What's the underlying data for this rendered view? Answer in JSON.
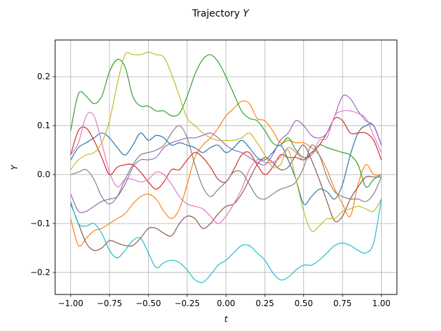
{
  "chart_data": {
    "type": "line",
    "title": "Trajectory ",
    "title_var": "Y",
    "xlabel": "t",
    "ylabel": "Y",
    "xlim": [
      -1.1,
      1.1
    ],
    "ylim": [
      -0.245,
      0.275
    ],
    "xticks": [
      -1.0,
      -0.75,
      -0.5,
      -0.25,
      0.0,
      0.25,
      0.5,
      0.75,
      1.0
    ],
    "xtick_labels": [
      "−1.00",
      "−0.75",
      "−0.50",
      "−0.25",
      "0.00",
      "0.25",
      "0.50",
      "0.75",
      "1.00"
    ],
    "yticks": [
      -0.2,
      -0.1,
      0.0,
      0.1,
      0.2
    ],
    "ytick_labels": [
      "−0.2",
      "−0.1",
      "0.0",
      "0.1",
      "0.2"
    ],
    "grid": true,
    "series": [
      {
        "color": "#1f77b4",
        "x": [
          -1.0,
          -0.95,
          -0.9,
          -0.85,
          -0.8,
          -0.75,
          -0.7,
          -0.65,
          -0.6,
          -0.55,
          -0.5,
          -0.45,
          -0.4,
          -0.35,
          -0.3,
          -0.25,
          -0.2,
          -0.15,
          -0.1,
          -0.05,
          0.0,
          0.05,
          0.1,
          0.15,
          0.2,
          0.25,
          0.3,
          0.35,
          0.4,
          0.45,
          0.5,
          0.55,
          0.6,
          0.65,
          0.7,
          0.75,
          0.8,
          0.85,
          0.9,
          0.95,
          1.0
        ],
        "y": [
          0.03,
          0.055,
          0.065,
          0.075,
          0.085,
          0.075,
          0.055,
          0.04,
          0.06,
          0.085,
          0.07,
          0.08,
          0.075,
          0.06,
          0.065,
          0.06,
          0.055,
          0.045,
          0.055,
          0.06,
          0.045,
          0.055,
          0.07,
          0.055,
          0.035,
          0.03,
          0.045,
          0.06,
          0.03,
          -0.01,
          -0.06,
          -0.045,
          -0.03,
          -0.035,
          -0.05,
          -0.02,
          0.04,
          0.085,
          0.1,
          0.1,
          0.06
        ]
      },
      {
        "color": "#ff7f0e",
        "x": [
          -1.0,
          -0.95,
          -0.9,
          -0.85,
          -0.8,
          -0.75,
          -0.7,
          -0.65,
          -0.6,
          -0.55,
          -0.5,
          -0.45,
          -0.4,
          -0.35,
          -0.3,
          -0.25,
          -0.2,
          -0.15,
          -0.1,
          -0.05,
          0.0,
          0.05,
          0.1,
          0.15,
          0.2,
          0.25,
          0.3,
          0.35,
          0.4,
          0.45,
          0.5,
          0.55,
          0.6,
          0.65,
          0.7,
          0.75,
          0.8,
          0.85,
          0.9,
          0.95,
          1.0
        ],
        "y": [
          -0.09,
          -0.145,
          -0.13,
          -0.115,
          -0.11,
          -0.1,
          -0.09,
          -0.08,
          -0.06,
          -0.045,
          -0.04,
          -0.05,
          -0.075,
          -0.09,
          -0.07,
          -0.02,
          0.035,
          0.06,
          0.075,
          0.095,
          0.12,
          0.135,
          0.15,
          0.145,
          0.115,
          0.11,
          0.09,
          0.065,
          0.07,
          0.065,
          0.065,
          0.055,
          0.04,
          0.01,
          -0.03,
          -0.06,
          -0.085,
          -0.02,
          0.02,
          0.0,
          0.0
        ]
      },
      {
        "color": "#2ca02c",
        "x": [
          -1.0,
          -0.95,
          -0.9,
          -0.85,
          -0.8,
          -0.75,
          -0.7,
          -0.65,
          -0.6,
          -0.55,
          -0.5,
          -0.45,
          -0.4,
          -0.35,
          -0.3,
          -0.25,
          -0.2,
          -0.15,
          -0.1,
          -0.05,
          0.0,
          0.05,
          0.1,
          0.15,
          0.2,
          0.25,
          0.3,
          0.35,
          0.4,
          0.45,
          0.5,
          0.55,
          0.6,
          0.65,
          0.7,
          0.75,
          0.8,
          0.85,
          0.9,
          0.95,
          1.0
        ],
        "y": [
          0.09,
          0.165,
          0.16,
          0.145,
          0.16,
          0.21,
          0.235,
          0.22,
          0.16,
          0.14,
          0.14,
          0.13,
          0.13,
          0.12,
          0.125,
          0.16,
          0.205,
          0.235,
          0.245,
          0.23,
          0.2,
          0.165,
          0.13,
          0.115,
          0.11,
          0.09,
          0.065,
          0.06,
          0.075,
          0.05,
          0.035,
          0.04,
          0.06,
          0.055,
          0.05,
          0.045,
          0.04,
          0.02,
          -0.025,
          -0.01,
          0.0
        ]
      },
      {
        "color": "#d62728",
        "x": [
          -1.0,
          -0.95,
          -0.9,
          -0.85,
          -0.8,
          -0.75,
          -0.7,
          -0.65,
          -0.6,
          -0.55,
          -0.5,
          -0.45,
          -0.4,
          -0.35,
          -0.3,
          -0.25,
          -0.2,
          -0.15,
          -0.1,
          -0.05,
          0.0,
          0.05,
          0.1,
          0.15,
          0.2,
          0.25,
          0.3,
          0.35,
          0.4,
          0.45,
          0.5,
          0.55,
          0.6,
          0.65,
          0.7,
          0.75,
          0.8,
          0.85,
          0.9,
          0.95,
          1.0
        ],
        "y": [
          0.04,
          0.09,
          0.095,
          0.07,
          0.035,
          0.0,
          0.015,
          0.02,
          0.02,
          0.005,
          -0.015,
          -0.03,
          -0.015,
          0.01,
          0.01,
          0.03,
          0.045,
          0.035,
          0.015,
          -0.01,
          -0.015,
          0.01,
          0.04,
          0.045,
          0.02,
          0.0,
          0.015,
          0.04,
          0.035,
          0.035,
          0.03,
          0.045,
          0.06,
          0.085,
          0.115,
          0.11,
          0.085,
          0.085,
          0.085,
          0.07,
          0.03
        ]
      },
      {
        "color": "#9467bd",
        "x": [
          -1.0,
          -0.95,
          -0.9,
          -0.85,
          -0.8,
          -0.75,
          -0.7,
          -0.65,
          -0.6,
          -0.55,
          -0.5,
          -0.45,
          -0.4,
          -0.35,
          -0.3,
          -0.25,
          -0.2,
          -0.15,
          -0.1,
          -0.05,
          0.0,
          0.05,
          0.1,
          0.15,
          0.2,
          0.25,
          0.3,
          0.35,
          0.4,
          0.45,
          0.5,
          0.55,
          0.6,
          0.65,
          0.7,
          0.75,
          0.8,
          0.85,
          0.9,
          0.95,
          1.0
        ],
        "y": [
          -0.04,
          -0.075,
          -0.075,
          -0.065,
          -0.055,
          -0.05,
          -0.045,
          -0.02,
          0.015,
          0.03,
          0.03,
          0.035,
          0.055,
          0.065,
          0.07,
          0.075,
          0.075,
          0.08,
          0.085,
          0.075,
          0.06,
          0.05,
          0.045,
          0.035,
          0.025,
          0.02,
          0.04,
          0.07,
          0.085,
          0.11,
          0.1,
          0.08,
          0.075,
          0.085,
          0.12,
          0.16,
          0.155,
          0.13,
          0.11,
          0.1,
          0.06
        ]
      },
      {
        "color": "#8c564b",
        "x": [
          -1.0,
          -0.95,
          -0.9,
          -0.85,
          -0.8,
          -0.75,
          -0.7,
          -0.65,
          -0.6,
          -0.55,
          -0.5,
          -0.45,
          -0.4,
          -0.35,
          -0.3,
          -0.25,
          -0.2,
          -0.15,
          -0.1,
          -0.05,
          0.0,
          0.05,
          0.1,
          0.15,
          0.2,
          0.25,
          0.3,
          0.35,
          0.4,
          0.45,
          0.5,
          0.55,
          0.6,
          0.65,
          0.7,
          0.75,
          0.8,
          0.85,
          0.9,
          0.95,
          1.0
        ],
        "y": [
          -0.06,
          -0.1,
          -0.14,
          -0.155,
          -0.15,
          -0.135,
          -0.14,
          -0.145,
          -0.145,
          -0.13,
          -0.11,
          -0.11,
          -0.12,
          -0.125,
          -0.1,
          -0.085,
          -0.09,
          -0.11,
          -0.1,
          -0.08,
          -0.065,
          -0.06,
          -0.04,
          -0.01,
          0.02,
          0.035,
          0.025,
          0.01,
          0.015,
          0.04,
          0.06,
          0.03,
          -0.01,
          -0.055,
          -0.095,
          -0.085,
          -0.05,
          -0.025,
          -0.005,
          -0.005,
          -0.005
        ]
      },
      {
        "color": "#e377c2",
        "x": [
          -1.0,
          -0.95,
          -0.9,
          -0.85,
          -0.8,
          -0.75,
          -0.7,
          -0.65,
          -0.6,
          -0.55,
          -0.5,
          -0.45,
          -0.4,
          -0.35,
          -0.3,
          -0.25,
          -0.2,
          -0.15,
          -0.1,
          -0.05,
          0.0,
          0.05,
          0.1,
          0.15,
          0.2,
          0.25,
          0.3,
          0.35,
          0.4,
          0.45,
          0.5,
          0.55,
          0.6,
          0.65,
          0.7,
          0.75,
          0.8,
          0.85,
          0.9,
          0.95,
          1.0
        ],
        "y": [
          0.04,
          0.065,
          0.12,
          0.12,
          0.065,
          0.005,
          -0.025,
          -0.01,
          -0.01,
          -0.015,
          -0.01,
          0.005,
          0.0,
          -0.02,
          -0.045,
          -0.06,
          -0.065,
          -0.07,
          -0.085,
          -0.1,
          -0.085,
          -0.06,
          -0.03,
          0.01,
          0.03,
          0.025,
          0.025,
          0.035,
          0.055,
          0.045,
          0.03,
          0.04,
          0.07,
          0.075,
          0.12,
          0.13,
          0.13,
          0.125,
          0.115,
          0.08,
          0.045
        ]
      },
      {
        "color": "#7f7f7f",
        "x": [
          -1.0,
          -0.95,
          -0.9,
          -0.85,
          -0.8,
          -0.75,
          -0.7,
          -0.65,
          -0.6,
          -0.55,
          -0.5,
          -0.45,
          -0.4,
          -0.35,
          -0.3,
          -0.25,
          -0.2,
          -0.15,
          -0.1,
          -0.05,
          0.0,
          0.05,
          0.1,
          0.15,
          0.2,
          0.25,
          0.3,
          0.35,
          0.4,
          0.45,
          0.5,
          0.55,
          0.6,
          0.65,
          0.7,
          0.75,
          0.8,
          0.85,
          0.9,
          0.95,
          1.0
        ],
        "y": [
          0.0,
          0.005,
          0.01,
          -0.01,
          -0.045,
          -0.06,
          -0.045,
          -0.01,
          0.02,
          0.04,
          0.045,
          0.05,
          0.06,
          0.085,
          0.1,
          0.075,
          0.02,
          -0.025,
          -0.045,
          -0.03,
          -0.015,
          0.005,
          0.005,
          -0.02,
          -0.045,
          -0.05,
          -0.04,
          -0.03,
          -0.025,
          -0.015,
          0.015,
          0.06,
          0.04,
          -0.005,
          -0.035,
          -0.045,
          -0.05,
          -0.05,
          -0.055,
          -0.04,
          -0.005
        ]
      },
      {
        "color": "#bcbd22",
        "x": [
          -1.0,
          -0.95,
          -0.9,
          -0.85,
          -0.8,
          -0.75,
          -0.7,
          -0.65,
          -0.6,
          -0.55,
          -0.5,
          -0.45,
          -0.4,
          -0.35,
          -0.3,
          -0.25,
          -0.2,
          -0.15,
          -0.1,
          -0.05,
          0.0,
          0.05,
          0.1,
          0.15,
          0.2,
          0.25,
          0.3,
          0.35,
          0.4,
          0.45,
          0.5,
          0.55,
          0.6,
          0.65,
          0.7,
          0.75,
          0.8,
          0.85,
          0.9,
          0.95,
          1.0
        ],
        "y": [
          0.01,
          0.03,
          0.04,
          0.045,
          0.065,
          0.11,
          0.185,
          0.245,
          0.245,
          0.245,
          0.25,
          0.245,
          0.24,
          0.205,
          0.16,
          0.115,
          0.1,
          0.085,
          0.075,
          0.07,
          0.07,
          0.07,
          0.075,
          0.085,
          0.065,
          0.04,
          0.015,
          0.02,
          0.05,
          -0.01,
          -0.075,
          -0.115,
          -0.105,
          -0.09,
          -0.09,
          -0.075,
          -0.07,
          -0.065,
          -0.07,
          -0.075,
          -0.05
        ]
      },
      {
        "color": "#17becf",
        "x": [
          -1.0,
          -0.95,
          -0.9,
          -0.85,
          -0.8,
          -0.75,
          -0.7,
          -0.65,
          -0.6,
          -0.55,
          -0.5,
          -0.45,
          -0.4,
          -0.35,
          -0.3,
          -0.25,
          -0.2,
          -0.15,
          -0.1,
          -0.05,
          0.0,
          0.05,
          0.1,
          0.15,
          0.2,
          0.25,
          0.3,
          0.35,
          0.4,
          0.45,
          0.5,
          0.55,
          0.6,
          0.65,
          0.7,
          0.75,
          0.8,
          0.85,
          0.9,
          0.95,
          1.0
        ],
        "y": [
          -0.055,
          -0.1,
          -0.105,
          -0.1,
          -0.12,
          -0.155,
          -0.17,
          -0.155,
          -0.135,
          -0.13,
          -0.16,
          -0.19,
          -0.18,
          -0.175,
          -0.18,
          -0.195,
          -0.215,
          -0.22,
          -0.205,
          -0.185,
          -0.175,
          -0.16,
          -0.145,
          -0.145,
          -0.16,
          -0.175,
          -0.2,
          -0.215,
          -0.21,
          -0.195,
          -0.185,
          -0.185,
          -0.175,
          -0.16,
          -0.145,
          -0.14,
          -0.145,
          -0.155,
          -0.16,
          -0.14,
          -0.05
        ]
      }
    ]
  }
}
